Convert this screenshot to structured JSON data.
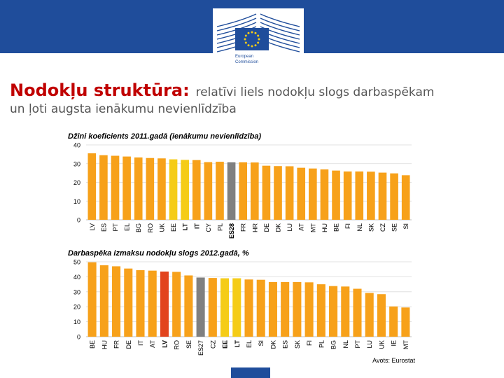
{
  "header": {
    "org_name_line1": "European",
    "org_name_line2": "Commission"
  },
  "slide": {
    "title_strong": "Nodokļu struktūra:",
    "title_rest": "relatīvi liels nodokļu slogs darbaspēkam",
    "title_line2": "un ļoti augsta ienākumu nevienlīdzība"
  },
  "source_note": "Avots: Eurostat",
  "colors": {
    "orange": "#f7a11a",
    "yellow": "#f5cc17",
    "red": "#e2441e",
    "grey": "#808080",
    "brand_blue": "#1f4d9b",
    "title_red": "#c00000"
  },
  "chart_data": [
    {
      "type": "bar",
      "title": "Džini koeficients 2011.gadā (ienākumu nevienlīdzība)",
      "ylim": [
        0,
        40
      ],
      "yticks": [
        0,
        10,
        20,
        30,
        40
      ],
      "categories": [
        "LV",
        "ES",
        "PT",
        "EL",
        "BG",
        "RO",
        "UK",
        "EE",
        "LT",
        "IT",
        "CY",
        "PL",
        "ES28",
        "FR",
        "HR",
        "DE",
        "DK",
        "LU",
        "AT",
        "MT",
        "HU",
        "BE",
        "FI",
        "NL",
        "SK",
        "CZ",
        "SE",
        "SI"
      ],
      "values": [
        35.5,
        34.5,
        34.2,
        33.8,
        33.3,
        33.0,
        32.8,
        32.3,
        32.0,
        31.9,
        30.8,
        31.0,
        30.7,
        30.7,
        30.6,
        28.9,
        28.7,
        28.6,
        27.8,
        27.4,
        26.9,
        26.3,
        25.8,
        25.8,
        25.7,
        25.2,
        24.8,
        23.8
      ],
      "bold_labels": [
        "LT",
        "IT",
        "ES28"
      ],
      "bar_colors": [
        "orange",
        "orange",
        "orange",
        "orange",
        "orange",
        "orange",
        "orange",
        "yellow",
        "yellow",
        "orange",
        "orange",
        "orange",
        "grey",
        "orange",
        "orange",
        "orange",
        "orange",
        "orange",
        "orange",
        "orange",
        "orange",
        "orange",
        "orange",
        "orange",
        "orange",
        "orange",
        "orange",
        "orange"
      ]
    },
    {
      "type": "bar",
      "title": "Darbaspēka izmaksu nodokļu slogs 2012.gadā, %",
      "ylim": [
        0,
        50
      ],
      "yticks": [
        0,
        10,
        20,
        30,
        40,
        50
      ],
      "categories": [
        "BE",
        "HU",
        "FR",
        "DE",
        "IT",
        "AT",
        "LV",
        "RO",
        "SE",
        "ES27",
        "CZ",
        "EE",
        "LT",
        "EL",
        "SI",
        "DK",
        "ES",
        "SK",
        "FI",
        "PL",
        "BG",
        "NL",
        "PT",
        "LU",
        "UK",
        "IE",
        "MT"
      ],
      "values": [
        49.7,
        47.7,
        47.0,
        45.5,
        44.4,
        44.1,
        43.5,
        43.3,
        40.9,
        39.5,
        39.2,
        39.0,
        39.0,
        38.2,
        38.0,
        36.5,
        36.5,
        36.5,
        36.3,
        35.0,
        33.8,
        33.5,
        32.0,
        29.2,
        28.4,
        20.2,
        19.5
      ],
      "bold_labels": [
        "LT",
        "LV",
        "EE"
      ],
      "bar_colors": [
        "orange",
        "orange",
        "orange",
        "orange",
        "orange",
        "orange",
        "red",
        "orange",
        "orange",
        "grey",
        "orange",
        "yellow",
        "yellow",
        "orange",
        "orange",
        "orange",
        "orange",
        "orange",
        "orange",
        "orange",
        "orange",
        "orange",
        "orange",
        "orange",
        "orange",
        "orange",
        "orange"
      ]
    }
  ]
}
